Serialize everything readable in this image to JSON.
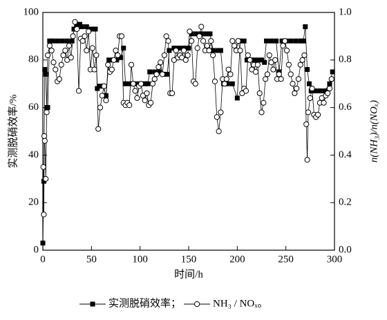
{
  "chart_data": {
    "type": "line",
    "xlabel": "时间/h",
    "ylabel": "实测脱硝效率/%",
    "y2label": "n(NH₃)/n(NOₓ)",
    "xlim": [
      0,
      300
    ],
    "xticks": [
      0,
      50,
      100,
      150,
      200,
      250,
      300
    ],
    "ylim": [
      0,
      100
    ],
    "yticks": [
      0,
      20,
      40,
      60,
      80,
      100
    ],
    "y2lim": [
      0,
      1
    ],
    "y2ticks": [
      {
        "value": 0,
        "label": "0.0"
      },
      0.2,
      0.4,
      0.6,
      0.8,
      {
        "value": 1,
        "label": "1.0"
      }
    ],
    "legend_punctuation": [
      "；",
      "。"
    ],
    "series": [
      {
        "name": "实测脱硝效率",
        "color": "#000000",
        "marker": "square",
        "axis": "y",
        "x": [
          0,
          1,
          2,
          3,
          4,
          5,
          7,
          10,
          15,
          20,
          25,
          30,
          32,
          35,
          38,
          40,
          45,
          50,
          54,
          56,
          58,
          62,
          65,
          68,
          72,
          76,
          80,
          83,
          85,
          90,
          95,
          100,
          105,
          108,
          110,
          115,
          120,
          125,
          128,
          130,
          135,
          140,
          145,
          150,
          153,
          158,
          163,
          168,
          172,
          175,
          180,
          183,
          186,
          190,
          195,
          200,
          203,
          207,
          210,
          215,
          220,
          225,
          228,
          230,
          235,
          240,
          243,
          246,
          250,
          255,
          260,
          265,
          268,
          270,
          272,
          274,
          276,
          280,
          285,
          290,
          295,
          298
        ],
        "values": [
          3,
          29,
          76,
          74,
          60,
          60,
          88,
          88,
          88,
          88,
          88,
          88,
          93,
          95,
          95,
          94,
          94,
          93,
          93,
          68,
          69,
          69,
          65,
          80,
          80,
          80,
          81,
          85,
          70,
          70,
          70,
          70,
          70,
          70,
          75,
          75,
          75,
          74,
          74,
          84,
          85,
          85,
          85,
          85,
          91,
          91,
          91,
          91,
          91,
          84,
          84,
          84,
          70,
          70,
          70,
          64,
          88,
          88,
          80,
          80,
          80,
          80,
          79,
          88,
          88,
          88,
          75,
          88,
          88,
          88,
          88,
          88,
          88,
          94,
          76,
          70,
          67,
          67,
          67,
          67,
          70,
          75
        ]
      },
      {
        "name": "NH₃ / NOₓ",
        "color": "#000000",
        "marker": "circle",
        "axis": "y2",
        "x": [
          0.5,
          1,
          1.5,
          2,
          3,
          4,
          5,
          7,
          9,
          11,
          13,
          15,
          17,
          19,
          21,
          23,
          25,
          27,
          29,
          31,
          33,
          35,
          37,
          39,
          41,
          43,
          45,
          47,
          49,
          51,
          53,
          55,
          57,
          59,
          61,
          63,
          65,
          67,
          69,
          71,
          73,
          75,
          77,
          79,
          81,
          83,
          85,
          87,
          89,
          91,
          93,
          95,
          97,
          99,
          101,
          103,
          105,
          107,
          109,
          111,
          113,
          115,
          117,
          119,
          121,
          123,
          125,
          127,
          129,
          131,
          133,
          135,
          137,
          139,
          141,
          143,
          145,
          147,
          149,
          151,
          153,
          155,
          157,
          159,
          161,
          163,
          165,
          167,
          169,
          171,
          173,
          175,
          177,
          179,
          181,
          183,
          185,
          187,
          189,
          191,
          193,
          195,
          197,
          199,
          201,
          203,
          205,
          207,
          209,
          211,
          213,
          215,
          217,
          219,
          221,
          223,
          225,
          227,
          229,
          231,
          233,
          235,
          237,
          239,
          241,
          243,
          245,
          247,
          249,
          251,
          253,
          255,
          257,
          259,
          261,
          263,
          265,
          267,
          269,
          271,
          272,
          273,
          275,
          277,
          279,
          281,
          283,
          285,
          287,
          289,
          291,
          293,
          295,
          297
        ],
        "values": [
          0.35,
          0.15,
          0.48,
          0.46,
          0.3,
          0.58,
          0.82,
          0.86,
          0.84,
          0.79,
          0.76,
          0.71,
          0.72,
          0.78,
          0.82,
          0.84,
          0.8,
          0.86,
          0.81,
          0.9,
          0.96,
          0.93,
          0.67,
          0.89,
          0.88,
          0.9,
          0.84,
          0.92,
          0.76,
          0.85,
          0.76,
          0.82,
          0.51,
          0.6,
          0.65,
          0.69,
          0.63,
          0.78,
          0.75,
          0.76,
          0.8,
          0.84,
          0.82,
          0.9,
          0.9,
          0.62,
          0.61,
          0.62,
          0.61,
          0.78,
          0.7,
          0.67,
          0.64,
          0.69,
          0.7,
          0.65,
          0.63,
          0.66,
          0.61,
          0.62,
          0.7,
          0.72,
          0.74,
          0.77,
          0.79,
          0.74,
          0.82,
          0.9,
          0.88,
          0.66,
          0.66,
          0.8,
          0.84,
          0.81,
          0.82,
          0.81,
          0.84,
          0.8,
          0.82,
          0.92,
          0.88,
          0.71,
          0.7,
          0.85,
          0.9,
          0.94,
          0.88,
          0.84,
          0.86,
          0.84,
          0.88,
          0.82,
          0.71,
          0.56,
          0.5,
          0.58,
          0.72,
          0.7,
          0.72,
          0.76,
          0.74,
          0.88,
          0.86,
          0.84,
          0.88,
          0.84,
          0.66,
          0.68,
          0.67,
          0.82,
          0.8,
          0.76,
          0.78,
          0.75,
          0.78,
          0.66,
          0.58,
          0.62,
          0.72,
          0.74,
          0.82,
          0.79,
          0.76,
          0.8,
          0.72,
          0.74,
          0.72,
          0.86,
          0.88,
          0.84,
          0.78,
          0.74,
          0.7,
          0.66,
          0.68,
          0.72,
          0.78,
          0.8,
          0.82,
          0.53,
          0.38,
          0.58,
          0.64,
          0.68,
          0.57,
          0.56,
          0.57,
          0.62,
          0.64,
          0.62,
          0.65,
          0.66,
          0.68,
          0.72
        ]
      }
    ]
  }
}
